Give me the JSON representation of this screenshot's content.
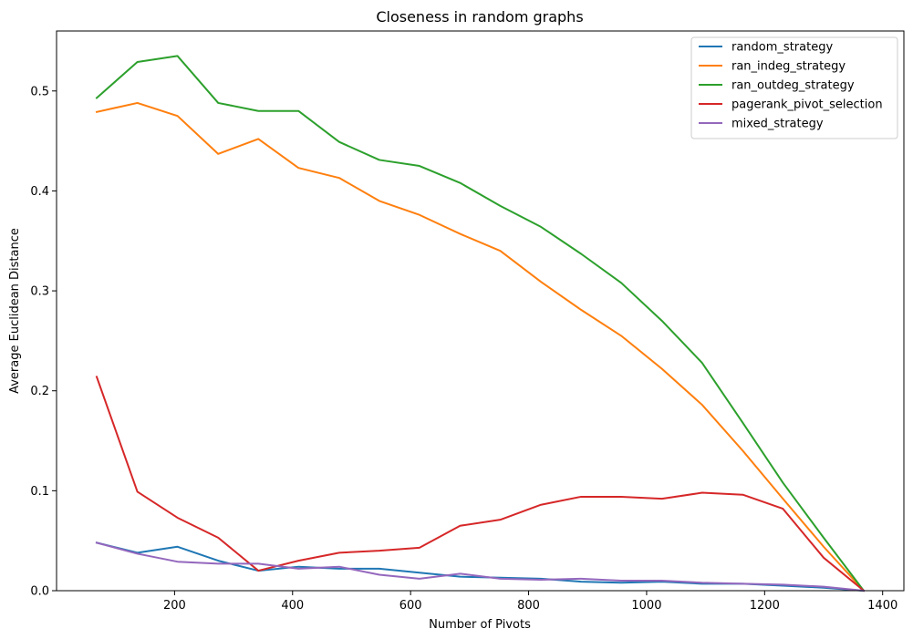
{
  "chart_data": {
    "type": "line",
    "title": "Closeness in random graphs",
    "xlabel": "Number of Pivots",
    "ylabel": "Average Euclidean Distance",
    "xlim": [
      0,
      1436
    ],
    "ylim": [
      0,
      0.56
    ],
    "xticks": [
      200,
      400,
      600,
      800,
      1000,
      1200,
      1400
    ],
    "yticks": [
      0.0,
      0.1,
      0.2,
      0.3,
      0.4,
      0.5
    ],
    "ytick_labels": [
      "0.0",
      "0.1",
      "0.2",
      "0.3",
      "0.4",
      "0.5"
    ],
    "grid": false,
    "legend_position": "top-right",
    "x": [
      68,
      137,
      205,
      274,
      342,
      410,
      479,
      547,
      615,
      684,
      752,
      821,
      889,
      957,
      1026,
      1094,
      1163,
      1231,
      1300,
      1368
    ],
    "series": [
      {
        "name": "random_strategy",
        "color": "#1f77b4",
        "values": [
          0.048,
          0.038,
          0.044,
          0.03,
          0.02,
          0.024,
          0.022,
          0.022,
          0.018,
          0.014,
          0.013,
          0.012,
          0.009,
          0.008,
          0.009,
          0.007,
          0.007,
          0.005,
          0.003,
          0.0
        ]
      },
      {
        "name": "ran_indeg_strategy",
        "color": "#ff7f0e",
        "values": [
          0.479,
          0.488,
          0.475,
          0.437,
          0.452,
          0.423,
          0.413,
          0.39,
          0.376,
          0.357,
          0.34,
          0.309,
          0.281,
          0.255,
          0.222,
          0.186,
          0.14,
          0.092,
          0.044,
          0.0
        ]
      },
      {
        "name": "ran_outdeg_strategy",
        "color": "#2ca02c",
        "values": [
          0.493,
          0.529,
          0.535,
          0.488,
          0.48,
          0.48,
          0.449,
          0.431,
          0.425,
          0.408,
          0.385,
          0.364,
          0.337,
          0.308,
          0.27,
          0.228,
          0.168,
          0.108,
          0.053,
          0.0
        ]
      },
      {
        "name": "pagerank_pivot_selection",
        "color": "#d62728",
        "values": [
          0.214,
          0.099,
          0.073,
          0.053,
          0.02,
          0.03,
          0.038,
          0.04,
          0.043,
          0.065,
          0.071,
          0.086,
          0.094,
          0.094,
          0.092,
          0.098,
          0.096,
          0.082,
          0.033,
          0.0
        ]
      },
      {
        "name": "mixed_strategy",
        "color": "#9467bd",
        "values": [
          0.048,
          0.037,
          0.029,
          0.027,
          0.027,
          0.022,
          0.024,
          0.016,
          0.012,
          0.017,
          0.012,
          0.011,
          0.012,
          0.01,
          0.01,
          0.008,
          0.007,
          0.006,
          0.004,
          0.0
        ]
      }
    ]
  }
}
